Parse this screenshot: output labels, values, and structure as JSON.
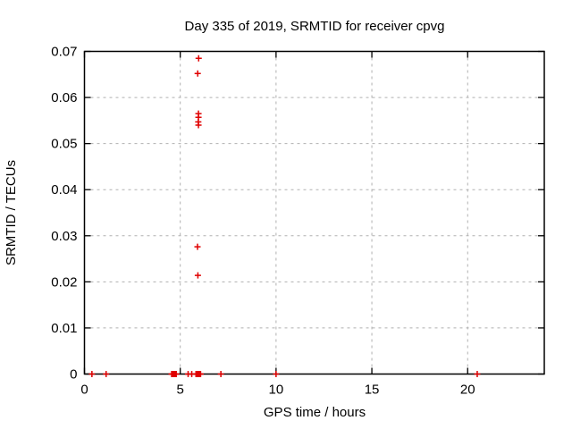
{
  "title": "Day 335 of 2019, SRMTID for receiver cpvg",
  "chart_data": {
    "type": "scatter",
    "title": "Day 335 of 2019, SRMTID for receiver cpvg",
    "xlabel": "GPS time / hours",
    "ylabel": "SRMTID / TECUs",
    "xlim": [
      0,
      24
    ],
    "ylim": [
      0,
      0.07
    ],
    "xticks": {
      "values": [
        0,
        5,
        10,
        15,
        20
      ],
      "labels": [
        "0",
        "5",
        "10",
        "15",
        "20"
      ]
    },
    "yticks": {
      "values": [
        0,
        0.01,
        0.02,
        0.03,
        0.04,
        0.05,
        0.06,
        0.07
      ],
      "labels": [
        "0",
        "0.01",
        "0.02",
        "0.03",
        "0.04",
        "0.05",
        "0.06",
        "0.07"
      ]
    },
    "grid": true,
    "legend": "none",
    "marker": {
      "shape": "plus",
      "color": "#e00000",
      "size": 7
    },
    "grid_color": "#b0b0b0",
    "border_color": "#000000",
    "series": [
      {
        "name": "SRMTID",
        "points": [
          [
            5.96,
            0.0685
          ],
          [
            5.91,
            0.0652
          ],
          [
            5.95,
            0.0565
          ],
          [
            5.95,
            0.0557
          ],
          [
            5.94,
            0.0547
          ],
          [
            5.95,
            0.054
          ],
          [
            5.9,
            0.0276
          ],
          [
            5.92,
            0.0214
          ],
          [
            0.39,
            0
          ],
          [
            1.13,
            0
          ],
          [
            4.55,
            0
          ],
          [
            4.58,
            0
          ],
          [
            4.61,
            0
          ],
          [
            4.64,
            0
          ],
          [
            4.67,
            0
          ],
          [
            4.7,
            0
          ],
          [
            4.73,
            0
          ],
          [
            4.76,
            0
          ],
          [
            4.79,
            0
          ],
          [
            5.41,
            0
          ],
          [
            5.6,
            0
          ],
          [
            5.82,
            0
          ],
          [
            5.85,
            0
          ],
          [
            5.88,
            0
          ],
          [
            5.91,
            0
          ],
          [
            5.94,
            0
          ],
          [
            5.97,
            0
          ],
          [
            6.0,
            0
          ],
          [
            6.03,
            0
          ],
          [
            6.06,
            0
          ],
          [
            7.12,
            0
          ],
          [
            10.0,
            0
          ],
          [
            20.5,
            0
          ]
        ]
      }
    ]
  }
}
